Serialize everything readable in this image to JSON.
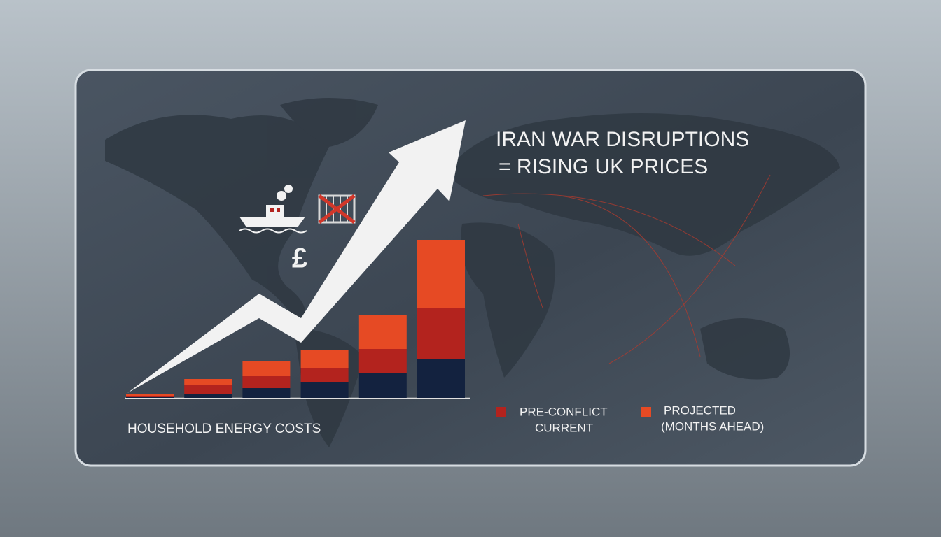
{
  "chart_data": {
    "type": "bar",
    "stacked": true,
    "title": "IRAN WAR DISRUPTIONS",
    "subtitle": "= RISING UK PRICES",
    "x_label": "HOUSEHOLD ENERGY COSTS",
    "annotations": [
      "£"
    ],
    "legend_note": "(MONTHS AHEAD)",
    "categories": [
      null,
      null,
      null,
      null,
      null,
      null
    ],
    "series": [
      {
        "name": "PRE-CONFLICT",
        "color": "#13223f",
        "values": [
          1,
          5,
          14,
          23,
          36,
          56
        ]
      },
      {
        "name": "CURRENT",
        "color": "#b3231e",
        "values": [
          2,
          13,
          17,
          19,
          34,
          72
        ]
      },
      {
        "name": "PROJECTED",
        "color": "#e64a24",
        "values": [
          2,
          9,
          21,
          27,
          48,
          98
        ]
      }
    ],
    "ylim": [
      0,
      226
    ]
  }
}
